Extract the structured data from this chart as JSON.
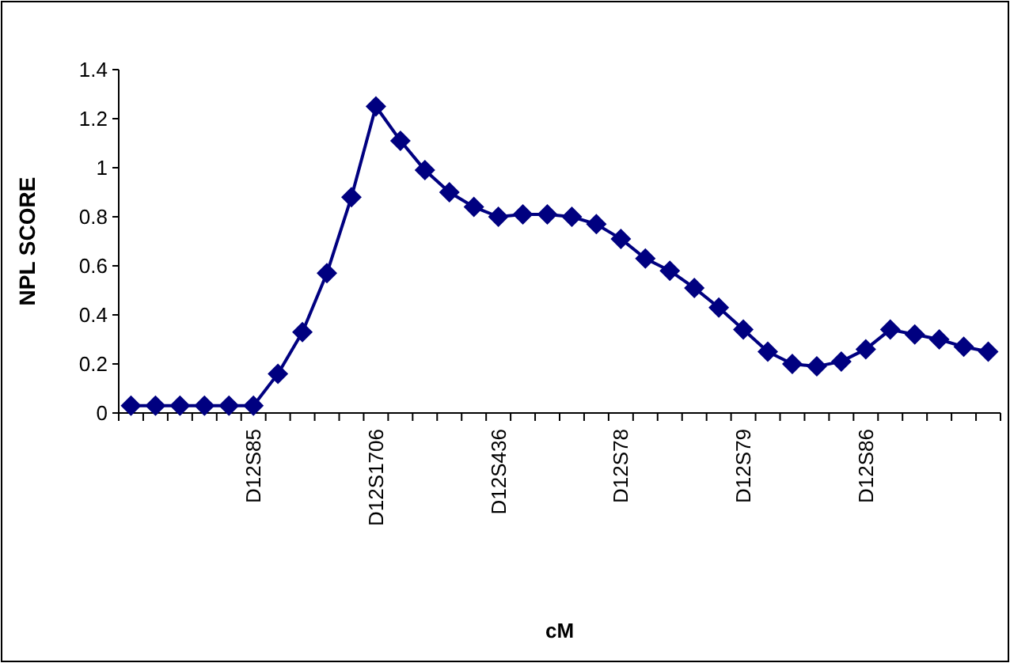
{
  "chart_data": {
    "type": "line",
    "xlabel": "cM",
    "ylabel": "NPL SCORE",
    "categories": [
      null,
      null,
      null,
      null,
      null,
      "D12S85",
      null,
      null,
      null,
      null,
      "D12S1706",
      null,
      null,
      null,
      null,
      "D12S436",
      null,
      null,
      null,
      null,
      "D12S78",
      null,
      null,
      null,
      null,
      "D12S79",
      null,
      null,
      null,
      null,
      "D12S86",
      null,
      null,
      null,
      null,
      null
    ],
    "series": [
      {
        "color": "#000080",
        "values": [
          0.03,
          0.03,
          0.03,
          0.03,
          0.03,
          0.03,
          0.16,
          0.33,
          0.57,
          0.88,
          1.25,
          1.11,
          0.99,
          0.9,
          0.84,
          0.8,
          0.81,
          0.81,
          0.8,
          0.77,
          0.71,
          0.63,
          0.58,
          0.51,
          0.43,
          0.34,
          0.25,
          0.2,
          0.19,
          0.21,
          0.26,
          0.34,
          0.32,
          0.3,
          0.27,
          0.25
        ]
      }
    ],
    "ylim": [
      0,
      1.4
    ],
    "yticks": [
      0,
      0.2,
      0.4,
      0.6,
      0.8,
      1,
      1.2,
      1.4
    ],
    "grid": false,
    "marker": "diamond",
    "line_style": "solid"
  }
}
